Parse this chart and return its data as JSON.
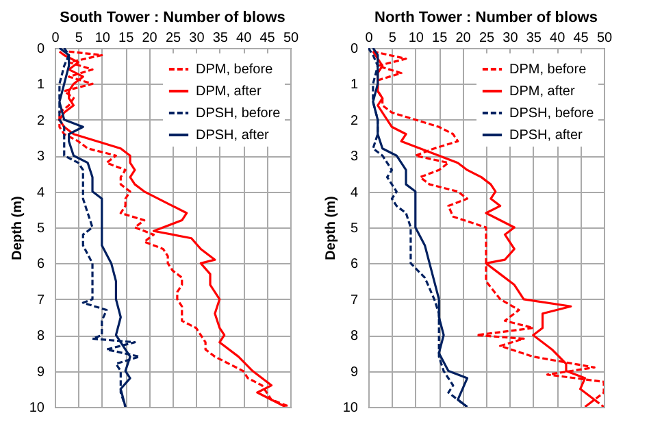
{
  "chart_data": [
    {
      "type": "line",
      "title": "South Tower : Number of blows",
      "ylabel": "Depth (m)",
      "xlim": [
        0,
        50
      ],
      "xticks": [
        0,
        5,
        10,
        15,
        20,
        25,
        30,
        35,
        40,
        45,
        50
      ],
      "ylim": [
        10,
        0
      ],
      "yticks": [
        0,
        1,
        2,
        3,
        4,
        5,
        6,
        7,
        8,
        9,
        10
      ],
      "grid": true,
      "legend": "top right",
      "series": [
        {
          "name": "DPM, before",
          "color": "#ff0000",
          "line_style": "dashed",
          "x": [
            3,
            10,
            3,
            8,
            3,
            8,
            2,
            4,
            3,
            1,
            1,
            1,
            2,
            5,
            7,
            13,
            11,
            15,
            14,
            14,
            16,
            15,
            15,
            14,
            19,
            17,
            21,
            19,
            23,
            24,
            24,
            25,
            27,
            27,
            26,
            26,
            27,
            27,
            27,
            30,
            31,
            32,
            32,
            34,
            37,
            40,
            41,
            44,
            45,
            46,
            50
          ],
          "values": [
            0.1,
            0.2,
            0.4,
            0.6,
            0.8,
            1.0,
            1.2,
            1.4,
            1.6,
            1.8,
            2.0,
            2.2,
            2.4,
            2.6,
            2.8,
            3.0,
            3.2,
            3.4,
            3.6,
            3.8,
            4.0,
            4.2,
            4.4,
            4.6,
            4.8,
            5.0,
            5.2,
            5.4,
            5.6,
            5.8,
            6.0,
            6.2,
            6.4,
            6.6,
            6.8,
            7.0,
            7.2,
            7.4,
            7.6,
            7.8,
            8.0,
            8.2,
            8.4,
            8.6,
            8.8,
            9.0,
            9.2,
            9.4,
            9.6,
            9.8,
            10
          ]
        },
        {
          "name": "DPM, after",
          "color": "#ff0000",
          "line_style": "solid",
          "x": [
            1,
            2,
            5,
            3,
            6,
            4,
            3,
            3,
            4,
            2,
            1,
            2,
            4,
            9,
            14,
            16,
            16,
            17,
            16,
            17,
            19,
            22,
            25,
            28,
            27,
            21,
            29,
            31,
            34,
            31,
            33,
            33,
            35,
            34,
            35,
            36,
            35,
            39,
            42,
            46,
            43,
            46,
            49
          ],
          "values": [
            0.1,
            0.2,
            0.4,
            0.6,
            0.8,
            1.0,
            1.2,
            1.4,
            1.6,
            1.8,
            2.0,
            2.2,
            2.4,
            2.6,
            2.8,
            3.0,
            3.2,
            3.4,
            3.6,
            3.8,
            4.0,
            4.2,
            4.4,
            4.6,
            4.8,
            5.1,
            5.3,
            5.6,
            5.9,
            6.0,
            6.3,
            6.6,
            7.0,
            7.4,
            7.8,
            8.0,
            8.2,
            8.6,
            9.0,
            9.4,
            9.6,
            9.8,
            10
          ]
        },
        {
          "name": "DPSH, before",
          "color": "#002060",
          "line_style": "dashed",
          "x": [
            2,
            3,
            2,
            1,
            1,
            1,
            2,
            2,
            2,
            5,
            6,
            6,
            6,
            7,
            8,
            6,
            6,
            8,
            8,
            8,
            6,
            11,
            10,
            10,
            8,
            17,
            11,
            18,
            13,
            14,
            14,
            14,
            15
          ],
          "values": [
            0,
            0.2,
            0.5,
            1.0,
            1.5,
            2.0,
            2.2,
            2.6,
            3.0,
            3.2,
            3.4,
            3.8,
            4.2,
            4.6,
            5.0,
            5.2,
            5.5,
            6.0,
            6.5,
            7.0,
            7.1,
            7.3,
            7.6,
            8.0,
            8.1,
            8.2,
            8.4,
            8.6,
            8.8,
            9.0,
            9.4,
            9.6,
            10
          ]
        },
        {
          "name": "DPSH, after",
          "color": "#002060",
          "line_style": "solid",
          "x": [
            1,
            3,
            3,
            2,
            1,
            2,
            6,
            3,
            3,
            4,
            7,
            8,
            8,
            10,
            10,
            10,
            10,
            12,
            13,
            13,
            14,
            13,
            14,
            16,
            15,
            16,
            14,
            15
          ],
          "values": [
            0,
            0.2,
            0.5,
            1.0,
            1.5,
            2.0,
            2.2,
            2.4,
            2.6,
            3.0,
            3.2,
            3.6,
            4.0,
            4.2,
            4.6,
            5.0,
            5.5,
            6.0,
            6.5,
            7.0,
            7.5,
            8.0,
            8.2,
            8.6,
            9.0,
            9.2,
            9.5,
            10
          ]
        }
      ]
    },
    {
      "type": "line",
      "title": "North Tower : Number of blows",
      "ylabel": "Depth (m)",
      "xlim": [
        0,
        50
      ],
      "xticks": [
        0,
        5,
        10,
        15,
        20,
        25,
        30,
        35,
        40,
        45,
        50
      ],
      "ylim": [
        10,
        0
      ],
      "yticks": [
        0,
        1,
        2,
        3,
        4,
        5,
        6,
        7,
        8,
        9,
        10
      ],
      "grid": true,
      "legend": "top right",
      "series": [
        {
          "name": "DPM, before",
          "color": "#ff0000",
          "line_style": "dashed",
          "x": [
            1,
            8,
            2,
            7,
            2,
            2,
            2,
            3,
            3,
            5,
            10,
            15,
            18,
            19,
            14,
            10,
            17,
            15,
            11,
            13,
            19,
            21,
            17,
            18,
            25,
            25,
            25,
            25,
            25,
            28,
            32,
            29,
            35,
            23,
            33,
            28,
            35,
            48,
            38,
            50,
            50,
            48,
            50
          ],
          "values": [
            0.1,
            0.3,
            0.5,
            0.7,
            0.9,
            1.0,
            1.2,
            1.4,
            1.6,
            1.8,
            2.0,
            2.2,
            2.4,
            2.6,
            2.8,
            3.0,
            3.2,
            3.4,
            3.6,
            3.8,
            4.0,
            4.2,
            4.4,
            4.7,
            5.0,
            5.4,
            5.8,
            6.0,
            6.5,
            7.0,
            7.3,
            7.6,
            7.8,
            8.0,
            8.1,
            8.3,
            8.6,
            8.9,
            9.1,
            9.3,
            9.6,
            9.8,
            10
          ]
        },
        {
          "name": "DPM, after",
          "color": "#ff0000",
          "line_style": "solid",
          "x": [
            1,
            2,
            3,
            2,
            2,
            2,
            3,
            2,
            3,
            4,
            5,
            8,
            7,
            11,
            15,
            19,
            21,
            24,
            26,
            27,
            26,
            28,
            25,
            31,
            29,
            31,
            29,
            25,
            28,
            31,
            33,
            43,
            37,
            37,
            35,
            39,
            42,
            42,
            46,
            45,
            48,
            46
          ],
          "values": [
            0.1,
            0.3,
            0.5,
            0.7,
            1.0,
            1.2,
            1.4,
            1.6,
            1.8,
            2.0,
            2.2,
            2.4,
            2.6,
            2.8,
            3.0,
            3.2,
            3.4,
            3.6,
            3.8,
            4.0,
            4.2,
            4.4,
            4.6,
            5.0,
            5.2,
            5.6,
            5.9,
            6.0,
            6.3,
            6.6,
            7.0,
            7.2,
            7.4,
            7.8,
            8.0,
            8.4,
            8.8,
            9.0,
            9.2,
            9.5,
            9.8,
            10
          ]
        },
        {
          "name": "DPSH, before",
          "color": "#002060",
          "line_style": "dashed",
          "x": [
            0,
            1,
            2,
            1,
            1,
            2,
            2,
            1,
            3,
            4,
            5,
            4,
            5,
            6,
            5,
            6,
            8,
            9,
            9,
            9,
            12,
            14,
            15,
            15,
            15,
            15,
            16,
            18,
            17,
            21
          ],
          "values": [
            0,
            0.2,
            0.5,
            1.0,
            1.5,
            2.0,
            2.4,
            2.8,
            3.0,
            3.2,
            3.4,
            3.6,
            3.8,
            4.0,
            4.2,
            4.4,
            4.6,
            5.0,
            5.5,
            6.0,
            6.4,
            7.0,
            7.4,
            7.8,
            8.2,
            8.6,
            9.0,
            9.4,
            9.6,
            10
          ]
        },
        {
          "name": "DPSH, after",
          "color": "#002060",
          "line_style": "solid",
          "x": [
            1,
            2,
            2,
            2,
            1,
            2,
            2,
            3,
            6,
            7,
            8,
            8,
            8,
            10,
            10,
            10,
            10,
            10,
            12,
            13,
            14,
            15,
            15,
            16,
            15,
            17,
            21,
            20,
            19,
            21
          ],
          "values": [
            0,
            0.2,
            0.5,
            1.0,
            1.5,
            2.0,
            2.4,
            2.8,
            3.0,
            3.2,
            3.4,
            3.6,
            3.8,
            4.0,
            4.2,
            4.4,
            4.6,
            5.0,
            5.5,
            6.0,
            6.5,
            7.0,
            7.5,
            8.0,
            8.5,
            9.0,
            9.2,
            9.5,
            9.8,
            10
          ]
        }
      ]
    }
  ]
}
